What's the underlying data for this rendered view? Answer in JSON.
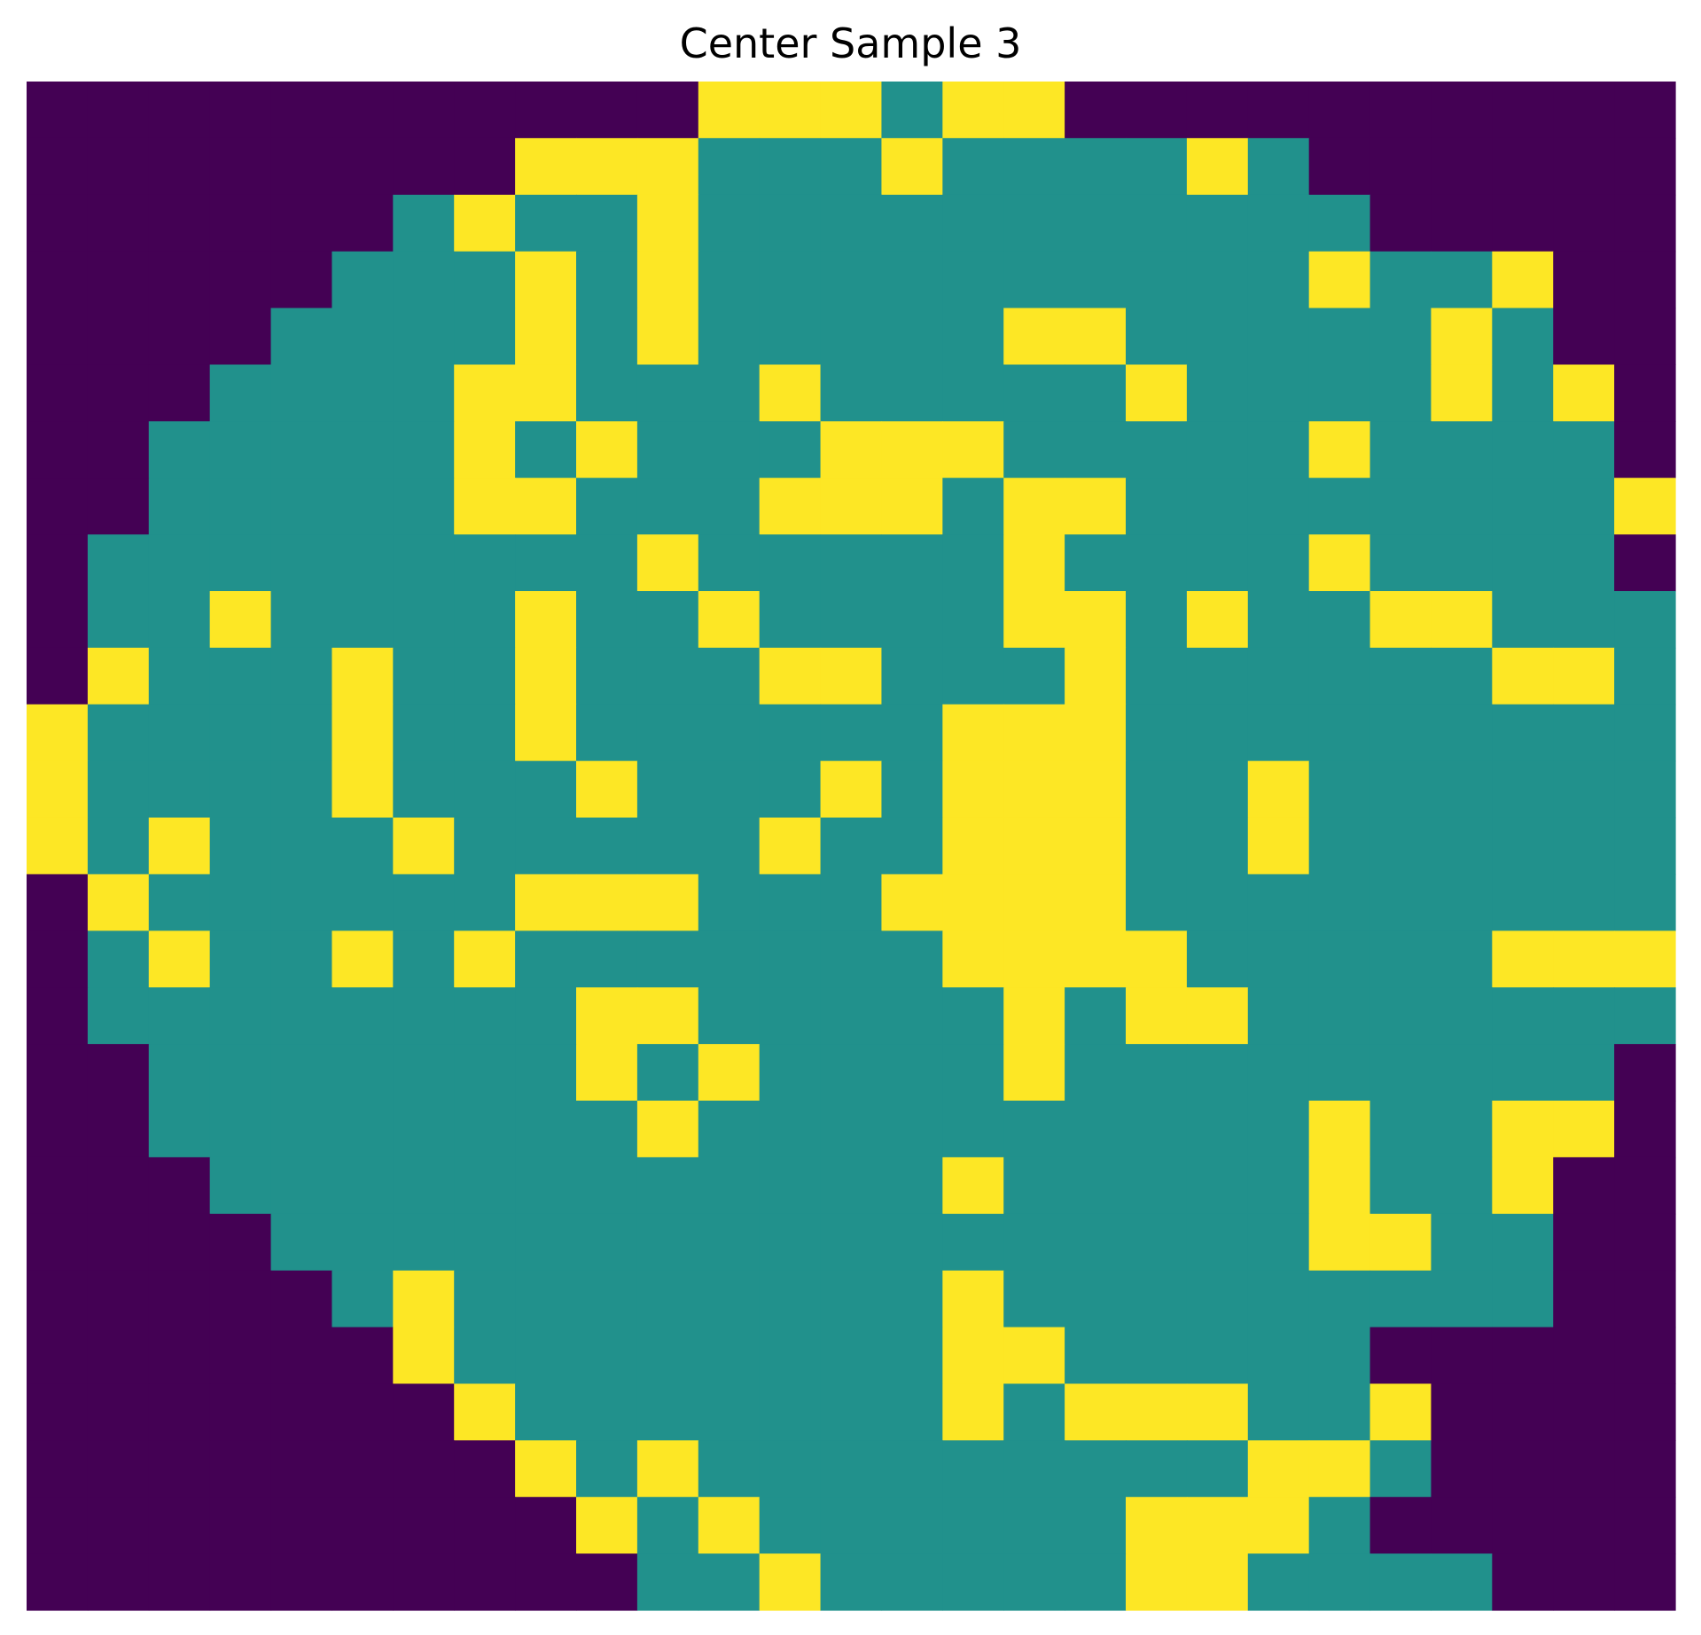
{
  "chart_data": {
    "type": "heatmap",
    "title": "Center Sample 3",
    "xlabel": "",
    "ylabel": "",
    "axes": "off",
    "grid": false,
    "colormap": "viridis",
    "value_colors": {
      "0": "#440154",
      "1": "#21918c",
      "2": "#fde725"
    },
    "rows": [
      "000000000002221220000000000",
      "000000002221112111121000000",
      "000000121121111111111100000",
      "000001112121111111111211200",
      "000011112121111122111112100",
      "000111122111211111211112120",
      "001111121211122211111211110",
      "001111122111222122111111112",
      "011111111121111121111211110",
      "011211112112111122121122111",
      "021112112111221112111111221",
      "211112112111111222111111111",
      "211112111211121222112111111",
      "212111211111211222112111111",
      "021111112221112222111111111",
      "012112121111111222211111222",
      "011111111221111121221111111",
      "001111111212111121111111110",
      "001111111121111111111211220",
      "000111111111111211111211200",
      "000011111111111111111221100",
      "000001211111111211111111100",
      "000000211111111221111100000",
      "000000021111111212221120000",
      "000000002121111111112210000",
      "000000000212111111222100000",
      "000000000011211111221111000"
    ]
  }
}
